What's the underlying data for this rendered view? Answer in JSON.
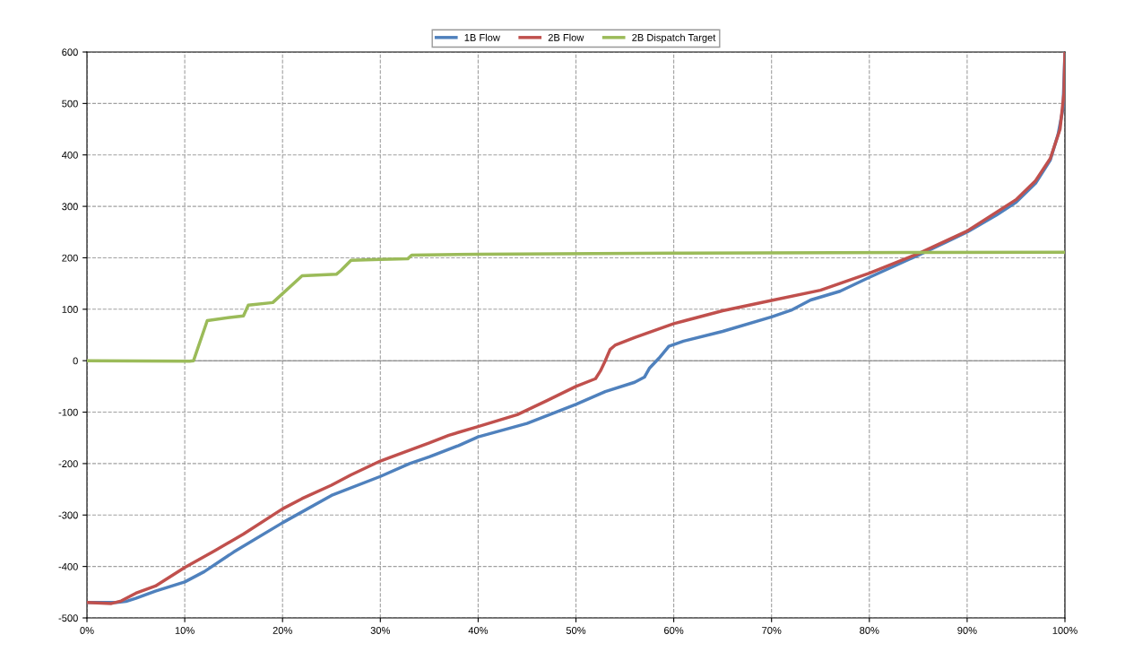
{
  "chart_data": {
    "type": "line",
    "legend": "top",
    "grid": true,
    "marker": "none",
    "line_style": "solid",
    "xlim": [
      0,
      100
    ],
    "ylim": [
      -500,
      600
    ],
    "xticks": [
      {
        "value": 0,
        "label": "0%"
      },
      {
        "value": 10,
        "label": "10%"
      },
      {
        "value": 20,
        "label": "20%"
      },
      {
        "value": 30,
        "label": "30%"
      },
      {
        "value": 40,
        "label": "40%"
      },
      {
        "value": 50,
        "label": "50%"
      },
      {
        "value": 60,
        "label": "60%"
      },
      {
        "value": 70,
        "label": "70%"
      },
      {
        "value": 80,
        "label": "80%"
      },
      {
        "value": 90,
        "label": "90%"
      },
      {
        "value": 100,
        "label": "100%"
      }
    ],
    "yticks": [
      -500,
      -400,
      -300,
      -200,
      -100,
      0,
      100,
      200,
      300,
      400,
      500,
      600
    ],
    "ref_lines": [
      {
        "axis": "y",
        "value": 0,
        "color": "#808080"
      }
    ],
    "series": [
      {
        "name": "1B Flow",
        "color": "#4f81bd",
        "x": [
          0,
          3,
          4,
          5,
          7,
          10,
          12,
          15,
          20,
          25,
          30,
          33,
          35,
          38,
          40,
          45,
          50,
          53,
          56,
          57,
          57.5,
          58.5,
          59.5,
          61,
          65,
          70,
          72,
          74,
          77,
          80,
          85,
          88,
          90,
          93,
          95,
          97,
          98.5,
          99.3,
          99.8,
          100
        ],
        "values": [
          -470,
          -470,
          -468,
          -462,
          -448,
          -430,
          -410,
          -372,
          -315,
          -262,
          -225,
          -200,
          -187,
          -165,
          -148,
          -122,
          -85,
          -60,
          -42,
          -32,
          -15,
          5,
          28,
          38,
          57,
          85,
          98,
          118,
          135,
          162,
          205,
          232,
          250,
          283,
          308,
          345,
          390,
          440,
          490,
          600
        ]
      },
      {
        "name": "2B Flow",
        "color": "#c0504d",
        "x": [
          0,
          2.5,
          3.5,
          5,
          7,
          10,
          13,
          16,
          20,
          22,
          25,
          27,
          30,
          35,
          37,
          40,
          44,
          47,
          50,
          52,
          52.5,
          53,
          53.5,
          54,
          56,
          60,
          65,
          70,
          75,
          80,
          85,
          90,
          95,
          97,
          98.5,
          99.5,
          99.9,
          100
        ],
        "values": [
          -470,
          -472,
          -467,
          -452,
          -438,
          -402,
          -370,
          -337,
          -288,
          -268,
          -242,
          -222,
          -195,
          -160,
          -145,
          -128,
          -105,
          -78,
          -50,
          -35,
          -20,
          0,
          22,
          30,
          45,
          72,
          97,
          117,
          137,
          170,
          208,
          252,
          313,
          350,
          393,
          450,
          520,
          600
        ]
      },
      {
        "name": "2B Dispatch Target",
        "color": "#9bbb59",
        "x": [
          0,
          10.5,
          10.9,
          12.3,
          15,
          16,
          16.5,
          19,
          22,
          25.5,
          26,
          27,
          30,
          32.8,
          33.2,
          40,
          60,
          100
        ],
        "values": [
          0,
          -1,
          0,
          78,
          85,
          87,
          108,
          113,
          165,
          168,
          176,
          195,
          197,
          198,
          205,
          207,
          209,
          211
        ]
      }
    ]
  }
}
